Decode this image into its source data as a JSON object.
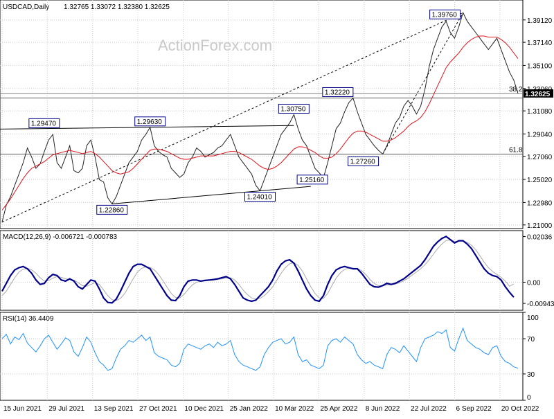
{
  "header": {
    "symbol": "USDCAD,Daily",
    "ohlc": "1.32765 1.33072 1.32380 1.32625",
    "watermark": "ActionForex.com"
  },
  "chart_data": {
    "type": "line",
    "x_labels": [
      "15 Jun 2021",
      "29 Jul 2021",
      "13 Sep 2021",
      "27 Oct 2021",
      "10 Dec 2021",
      "25 Jan 2022",
      "10 Mar 2022",
      "25 Apr 2022",
      "8 Jun 2022",
      "22 Jul 2022",
      "6 Sep 2022",
      "20 Oct 2022"
    ],
    "price": {
      "y_ticks": [
        1.21,
        1.2298,
        1.2502,
        1.2706,
        1.2904,
        1.3108,
        1.3306,
        1.351,
        1.3714,
        1.3912
      ],
      "y_tick_labels": [
        "1.21000",
        "1.22980",
        "1.25020",
        "1.27060",
        "1.29040",
        "1.31080",
        "1.33060",
        "1.35100",
        "1.37140",
        "1.39120"
      ],
      "ylim": [
        1.2068,
        1.4088
      ],
      "current": 1.32625,
      "current_label": "1.32625",
      "series": [
        1.2125,
        1.2275,
        1.235,
        1.245,
        1.255,
        1.265,
        1.278,
        1.27,
        1.26,
        1.264,
        1.275,
        1.285,
        1.29,
        1.265,
        1.26,
        1.27,
        1.28,
        1.258,
        1.256,
        1.26,
        1.28,
        1.285,
        1.27,
        1.25,
        1.248,
        1.234,
        1.2286,
        1.235,
        1.245,
        1.255,
        1.265,
        1.27,
        1.275,
        1.285,
        1.29,
        1.2963,
        1.28,
        1.275,
        1.272,
        1.27,
        1.26,
        1.256,
        1.252,
        1.255,
        1.265,
        1.27,
        1.278,
        1.275,
        1.27,
        1.272,
        1.274,
        1.278,
        1.28,
        1.285,
        1.29,
        1.28,
        1.27,
        1.265,
        1.26,
        1.255,
        1.245,
        1.2401,
        1.25,
        1.26,
        1.27,
        1.28,
        1.29,
        1.295,
        1.3,
        1.3075,
        1.295,
        1.285,
        1.28,
        1.27,
        1.26,
        1.256,
        1.2516,
        1.265,
        1.28,
        1.295,
        1.3,
        1.31,
        1.318,
        1.3222,
        1.31,
        1.3,
        1.29,
        1.285,
        1.28,
        1.276,
        1.2726,
        1.28,
        1.29,
        1.3,
        1.305,
        1.315,
        1.32,
        1.315,
        1.308,
        1.315,
        1.33,
        1.35,
        1.365,
        1.375,
        1.385,
        1.39,
        1.38,
        1.375,
        1.385,
        1.3976,
        1.39,
        1.385,
        1.38,
        1.375,
        1.37,
        1.365,
        1.37,
        1.375,
        1.365,
        1.355,
        1.345,
        1.338,
        1.32625
      ],
      "sma": [
        1.223,
        1.228,
        1.233,
        1.239,
        1.245,
        1.251,
        1.256,
        1.26,
        1.262,
        1.264,
        1.266,
        1.269,
        1.272,
        1.273,
        1.274,
        1.275,
        1.276,
        1.275,
        1.274,
        1.273,
        1.274,
        1.275,
        1.273,
        1.27,
        1.266,
        1.262,
        1.258,
        1.256,
        1.255,
        1.256,
        1.257,
        1.26,
        1.264,
        1.268,
        1.272,
        1.276,
        1.277,
        1.277,
        1.276,
        1.275,
        1.273,
        1.271,
        1.269,
        1.268,
        1.268,
        1.269,
        1.27,
        1.271,
        1.271,
        1.271,
        1.271,
        1.272,
        1.273,
        1.274,
        1.275,
        1.275,
        1.274,
        1.272,
        1.27,
        1.268,
        1.265,
        1.262,
        1.26,
        1.259,
        1.26,
        1.262,
        1.265,
        1.269,
        1.273,
        1.277,
        1.279,
        1.279,
        1.278,
        1.276,
        1.274,
        1.271,
        1.269,
        1.269,
        1.27,
        1.273,
        1.277,
        1.282,
        1.287,
        1.291,
        1.293,
        1.293,
        1.292,
        1.29,
        1.288,
        1.286,
        1.284,
        1.284,
        1.285,
        1.287,
        1.29,
        1.293,
        1.297,
        1.3,
        1.302,
        1.305,
        1.31,
        1.317,
        1.325,
        1.333,
        1.341,
        1.349,
        1.354,
        1.358,
        1.362,
        1.367,
        1.371,
        1.374,
        1.376,
        1.377,
        1.377,
        1.376,
        1.376,
        1.376,
        1.374,
        1.371,
        1.367,
        1.362,
        1.357
      ],
      "levels": [
        {
          "label": "1.39760",
          "value": 1.3976,
          "idx": 109
        },
        {
          "label": "1.32220",
          "value": 1.3222,
          "idx": 83
        },
        {
          "label": "1.30750",
          "value": 1.3075,
          "idx": 69
        },
        {
          "label": "1.29630",
          "value": 1.2963,
          "idx": 35
        },
        {
          "label": "1.29470",
          "value": 1.2947,
          "idx": 8
        },
        {
          "label": "1.27260",
          "value": 1.2726,
          "idx": 90
        },
        {
          "label": "1.25160",
          "value": 1.2516,
          "idx": 76
        },
        {
          "label": "1.24010",
          "value": 1.2401,
          "idx": 61
        },
        {
          "label": "1.22860",
          "value": 1.2286,
          "idx": 26
        }
      ],
      "fib": [
        {
          "label": "38.2",
          "value": 1.3262
        },
        {
          "label": "",
          "value": 1.3222
        },
        {
          "label": "61.8",
          "value": 1.2726
        }
      ]
    },
    "macd": {
      "label": "MACD(12,26,9) -0.006721 -0.000783",
      "y_tick_labels": [
        "0.02036",
        "0.00",
        "-0.009438"
      ],
      "y_ticks": [
        0.02036,
        0.0,
        -0.009438
      ],
      "ylim": [
        -0.0125,
        0.023
      ],
      "macd": [
        -0.004,
        -0.0005,
        0.003,
        0.0055,
        0.0065,
        0.007,
        0.006,
        0.004,
        0.001,
        -0.001,
        -0.0005,
        0.002,
        0.0035,
        0.003,
        0.001,
        0.0005,
        0.0015,
        0.0005,
        -0.002,
        -0.003,
        -0.001,
        0.001,
        0.0005,
        -0.003,
        -0.007,
        -0.009,
        -0.0092,
        -0.0075,
        -0.004,
        0.0,
        0.004,
        0.007,
        0.008,
        0.008,
        0.007,
        0.006,
        0.003,
        0.0,
        -0.003,
        -0.006,
        -0.008,
        -0.0082,
        -0.006,
        -0.002,
        0.0005,
        0.001,
        0.001,
        0.0005,
        0.0008,
        0.001,
        0.0012,
        0.0015,
        0.002,
        0.0025,
        0.0015,
        -0.001,
        -0.004,
        -0.007,
        -0.008,
        -0.0085,
        -0.008,
        -0.006,
        -0.004,
        -0.002,
        0.001,
        0.005,
        0.008,
        0.0095,
        0.01,
        0.0085,
        0.005,
        0.001,
        -0.003,
        -0.006,
        -0.008,
        -0.0085,
        -0.006,
        -0.001,
        0.003,
        0.0055,
        0.0065,
        0.007,
        0.0065,
        0.006,
        0.006,
        0.004,
        0.0015,
        -0.001,
        -0.002,
        -0.0022,
        -0.0015,
        -0.0005,
        -0.001,
        -0.0005,
        0.0005,
        0.0015,
        0.003,
        0.0045,
        0.006,
        0.0075,
        0.01,
        0.013,
        0.016,
        0.018,
        0.0195,
        0.0204,
        0.019,
        0.0175,
        0.0185,
        0.0185,
        0.017,
        0.015,
        0.012,
        0.009,
        0.006,
        0.004,
        0.003,
        0.0025,
        0.001,
        -0.002,
        -0.0045,
        -0.0067
      ],
      "signal": [
        -0.006,
        -0.004,
        -0.001,
        0.002,
        0.0045,
        0.0058,
        0.0062,
        0.0055,
        0.004,
        0.002,
        0.0005,
        0.0008,
        0.0018,
        0.0025,
        0.0022,
        0.0015,
        0.0012,
        0.001,
        -0.0002,
        -0.0015,
        -0.0018,
        -0.001,
        -0.0002,
        -0.001,
        -0.0035,
        -0.006,
        -0.0078,
        -0.0082,
        -0.0072,
        -0.005,
        -0.0018,
        0.0015,
        0.0045,
        0.0062,
        0.0068,
        0.0066,
        0.0055,
        0.0035,
        0.0008,
        -0.0022,
        -0.005,
        -0.0068,
        -0.007,
        -0.0055,
        -0.0032,
        -0.0012,
        0.0,
        0.0005,
        0.0006,
        0.0008,
        0.001,
        0.0012,
        0.0015,
        0.0019,
        0.002,
        0.001,
        -0.001,
        -0.0035,
        -0.0055,
        -0.007,
        -0.0076,
        -0.0072,
        -0.006,
        -0.0042,
        -0.002,
        0.001,
        0.004,
        0.0065,
        0.0082,
        0.0087,
        0.0075,
        0.005,
        0.0015,
        -0.002,
        -0.005,
        -0.007,
        -0.0072,
        -0.005,
        -0.0015,
        0.0018,
        0.0042,
        0.0057,
        0.0063,
        0.0063,
        0.0061,
        0.0052,
        0.0035,
        0.0012,
        -0.0005,
        -0.0015,
        -0.0016,
        -0.0012,
        -0.0011,
        -0.0008,
        -0.0002,
        0.0006,
        0.0018,
        0.0032,
        0.0046,
        0.006,
        0.0078,
        0.01,
        0.0125,
        0.015,
        0.017,
        0.0186,
        0.0188,
        0.0182,
        0.0183,
        0.0184,
        0.0178,
        0.0165,
        0.0145,
        0.0118,
        0.009,
        0.0065,
        0.0048,
        0.0035,
        0.0022,
        0.0005,
        -0.0018,
        -0.0008
      ]
    },
    "rsi": {
      "label": "RSI(14) 36.4409",
      "y_tick_labels": [
        "100",
        "70",
        "30",
        "0"
      ],
      "y_ticks": [
        100,
        70,
        30,
        0
      ],
      "ylim": [
        0,
        100
      ],
      "series": [
        70,
        75,
        64,
        72,
        69,
        76,
        65,
        60,
        55,
        62,
        70,
        74,
        66,
        58,
        64,
        71,
        68,
        55,
        50,
        60,
        72,
        66,
        54,
        44,
        40,
        34,
        36,
        48,
        58,
        62,
        68,
        66,
        70,
        74,
        68,
        72,
        54,
        50,
        48,
        46,
        40,
        38,
        42,
        58,
        64,
        62,
        60,
        58,
        62,
        64,
        60,
        66,
        62,
        64,
        68,
        52,
        44,
        40,
        38,
        36,
        34,
        38,
        52,
        60,
        66,
        68,
        70,
        64,
        66,
        72,
        52,
        44,
        46,
        40,
        38,
        36,
        40,
        62,
        68,
        70,
        66,
        72,
        68,
        64,
        52,
        46,
        42,
        44,
        40,
        38,
        36,
        52,
        60,
        58,
        54,
        62,
        56,
        50,
        44,
        60,
        70,
        72,
        74,
        78,
        76,
        80,
        60,
        56,
        70,
        82,
        68,
        64,
        60,
        58,
        54,
        52,
        60,
        62,
        50,
        44,
        42,
        38,
        36.44
      ]
    }
  }
}
